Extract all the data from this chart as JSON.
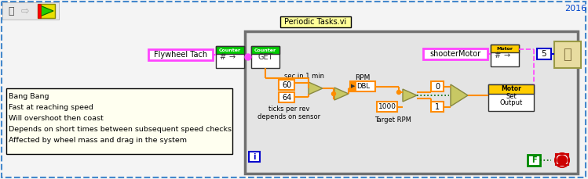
{
  "bg_color": "#f4f4f4",
  "outer_border_color": "#4488cc",
  "year_text": "2016",
  "periodic_label": "Periodic Tasks.vi",
  "periodic_label_bg": "#ffff99",
  "flywheel_label": "Flywheel Tach",
  "flywheel_label_border": "#ff00ff",
  "shooter_label": "shooterMotor",
  "shooter_label_border": "#ff00ff",
  "note_lines": [
    "Bang Bang",
    "Fast at reaching speed",
    "Will overshoot then coast",
    "Depends on short times between subsequent speed checks",
    "Affected by wheel mass and drag in the system"
  ],
  "note_bg": "#fffff0",
  "note_border": "#000000",
  "orange": "#ff8c00",
  "green_block": "#00cc00",
  "yellow_block": "#ffcc00",
  "tri_fc": "#c8c864",
  "tri_ec": "#888840",
  "wire_orange": "#ff8c00",
  "wire_green_dot": "#006600",
  "wire_pink": "#ff44ff",
  "wire_blue": "#0000cc"
}
